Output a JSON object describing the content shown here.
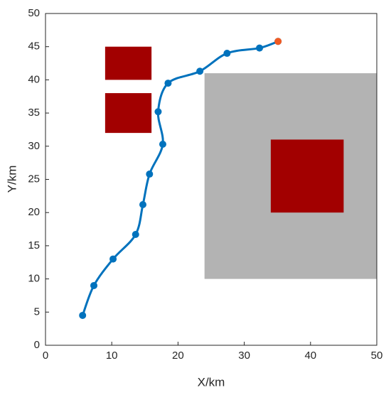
{
  "chart_data": {
    "type": "line",
    "xlabel": "X/km",
    "ylabel": "Y/km",
    "xlim": [
      0,
      50
    ],
    "ylim": [
      0,
      50
    ],
    "xticks": [
      0,
      10,
      20,
      30,
      40,
      50
    ],
    "yticks": [
      0,
      5,
      10,
      15,
      20,
      25,
      30,
      35,
      40,
      45,
      50
    ],
    "regions": [
      {
        "color": "#b3b3b3",
        "x": [
          24,
          50
        ],
        "y": [
          10,
          41
        ]
      },
      {
        "color": "#a20000",
        "x": [
          9,
          16
        ],
        "y": [
          40,
          45
        ]
      },
      {
        "color": "#a20000",
        "x": [
          9,
          16
        ],
        "y": [
          32,
          38
        ]
      },
      {
        "color": "#a20000",
        "x": [
          34,
          45
        ],
        "y": [
          20,
          31
        ]
      }
    ],
    "series": [
      {
        "color": "#0072bd",
        "x": [
          5.6,
          7.3,
          10.2,
          13.6,
          14.7,
          15.7,
          17.7,
          17.0,
          18.5,
          23.3,
          27.4,
          32.3,
          35.1
        ],
        "y": [
          4.5,
          9.0,
          13.0,
          16.7,
          21.2,
          25.8,
          30.3,
          35.2,
          39.5,
          41.3,
          44.0,
          44.8,
          45.8
        ]
      },
      {
        "color": "#f05a22",
        "x": [
          35.1
        ],
        "y": [
          45.8
        ]
      }
    ]
  }
}
